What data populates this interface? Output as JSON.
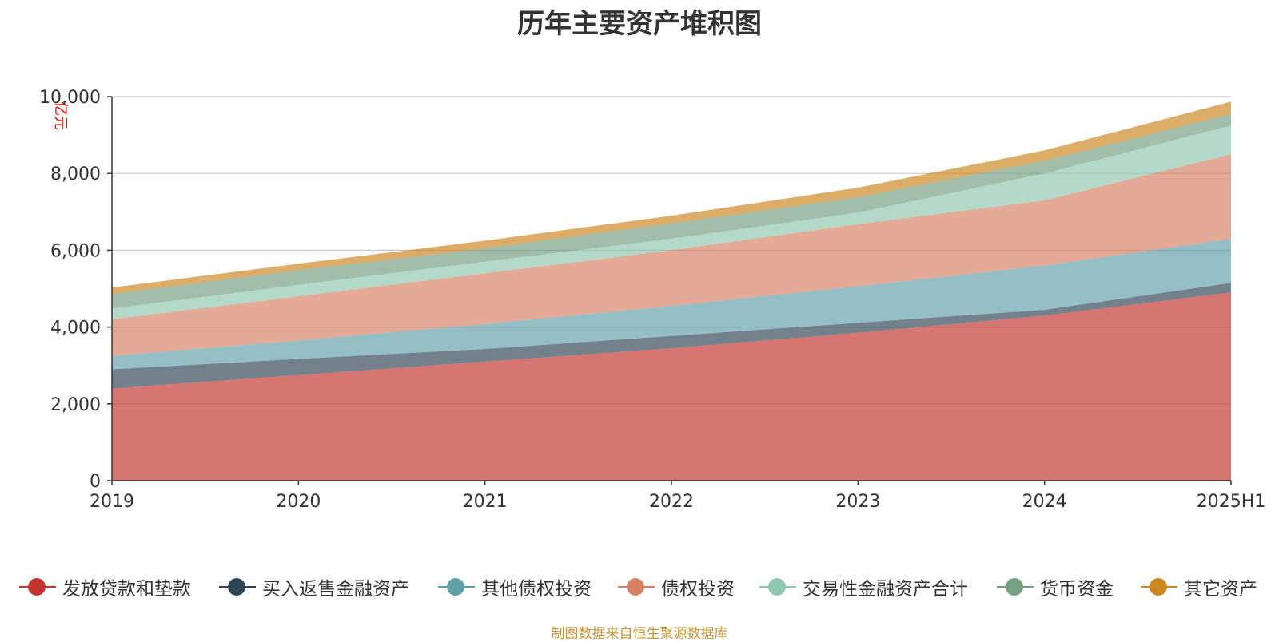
{
  "chart_data": {
    "type": "area",
    "stacked": true,
    "title": "历年主要资产堆积图",
    "ylabel": "亿元",
    "ylim": [
      0,
      10000
    ],
    "yticks": [
      "0",
      "2,000",
      "4,000",
      "6,000",
      "8,000",
      "10,000"
    ],
    "categories": [
      "2019",
      "2020",
      "2021",
      "2022",
      "2023",
      "2024",
      "2025H1"
    ],
    "grid": true,
    "legend_position": "bottom",
    "series": [
      {
        "name": "发放贷款和垫款",
        "color": "#c23531",
        "values": [
          2400,
          2750,
          3100,
          3450,
          3850,
          4300,
          4900
        ]
      },
      {
        "name": "买入返售金融资产",
        "color": "#2f4554",
        "values": [
          500,
          420,
          330,
          320,
          260,
          150,
          250
        ]
      },
      {
        "name": "其他债权投资",
        "color": "#61a0a8",
        "values": [
          350,
          480,
          650,
          780,
          950,
          1150,
          1150
        ]
      },
      {
        "name": "债权投资",
        "color": "#d48265",
        "values": [
          950,
          1150,
          1320,
          1450,
          1620,
          1700,
          2200
        ]
      },
      {
        "name": "交易性金融资产合计",
        "color": "#91c7ae",
        "values": [
          280,
          300,
          300,
          300,
          300,
          700,
          750
        ]
      },
      {
        "name": "货币资金",
        "color": "#749f83",
        "values": [
          380,
          380,
          350,
          400,
          400,
          330,
          300
        ]
      },
      {
        "name": "其它资产",
        "color": "#ca8622",
        "values": [
          170,
          170,
          200,
          200,
          250,
          270,
          320
        ]
      }
    ]
  },
  "source_note": "制图数据来自恒生聚源数据库"
}
